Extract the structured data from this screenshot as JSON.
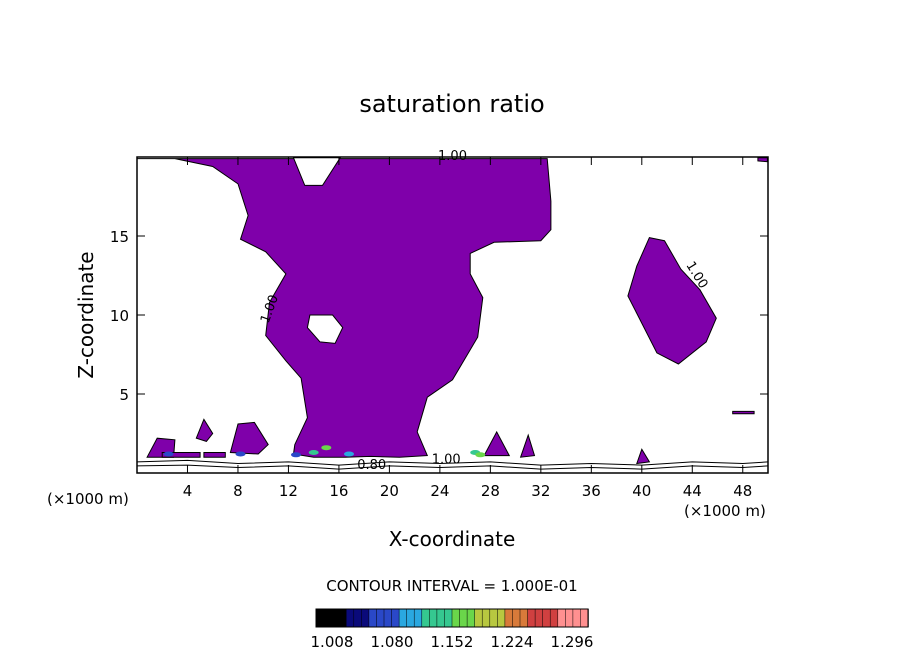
{
  "chart_data": {
    "type": "contour",
    "title": "saturation ratio",
    "xlabel": "X-coordinate",
    "ylabel": "Z-coordinate",
    "x_units_left": "(×1000 m)",
    "x_units_right": "(×1000 m)",
    "xlim": [
      0,
      50
    ],
    "ylim": [
      0,
      20
    ],
    "xticks": [
      4,
      8,
      12,
      16,
      20,
      24,
      28,
      32,
      36,
      40,
      44,
      48
    ],
    "yticks": [
      5,
      10,
      15
    ],
    "fill_threshold": 1.0,
    "fill_color": "#7f00aa",
    "contour_interval_text": "CONTOUR INTERVAL = 1.000E-01",
    "contour_labels": [
      "1.00",
      "1.00",
      "1.00",
      "0.80",
      "1.00"
    ],
    "colorbar": {
      "ticks": [
        "1.008",
        "1.080",
        "1.152",
        "1.224",
        "1.296"
      ],
      "colors": [
        "#000000",
        "#0a0a7a",
        "#2a48c8",
        "#2aa8e0",
        "#35c890",
        "#6ad64a",
        "#b8c840",
        "#d87a3a",
        "#d04040",
        "#ff9090"
      ]
    },
    "regions": [
      {
        "name": "upper-cloud",
        "points": [
          [
            0,
            19.9
          ],
          [
            3,
            19.9
          ],
          [
            6,
            19.4
          ],
          [
            8,
            18.3
          ],
          [
            8.8,
            16.3
          ],
          [
            8.2,
            14.8
          ],
          [
            10.2,
            14.0
          ],
          [
            11.8,
            12.6
          ],
          [
            10.5,
            10.8
          ],
          [
            10.2,
            8.7
          ],
          [
            11.8,
            7.1
          ],
          [
            13.0,
            6.0
          ],
          [
            13.5,
            3.5
          ],
          [
            12.5,
            1.8
          ],
          [
            12.4,
            1.2
          ],
          [
            14.0,
            1.0
          ],
          [
            16.5,
            1.0
          ],
          [
            18.5,
            1.05
          ],
          [
            20.8,
            1.0
          ],
          [
            23.0,
            1.1
          ],
          [
            22.2,
            2.6
          ],
          [
            23.0,
            4.8
          ],
          [
            25.0,
            5.9
          ],
          [
            27.0,
            8.6
          ],
          [
            27.4,
            11.1
          ],
          [
            26.4,
            12.6
          ],
          [
            26.4,
            13.9
          ],
          [
            28.3,
            14.6
          ],
          [
            32.0,
            14.7
          ],
          [
            32.8,
            15.4
          ],
          [
            32.8,
            17.2
          ],
          [
            32.5,
            19.9
          ],
          [
            0,
            19.9
          ]
        ]
      },
      {
        "name": "upper-clear-bay",
        "points": [
          [
            12.4,
            19.95
          ],
          [
            13.3,
            18.2
          ],
          [
            14.7,
            18.2
          ],
          [
            16.1,
            19.95
          ]
        ]
      },
      {
        "name": "cloud-hole",
        "points": [
          [
            13.7,
            10.0
          ],
          [
            15.5,
            10.0
          ],
          [
            16.3,
            9.2
          ],
          [
            15.7,
            8.2
          ],
          [
            14.5,
            8.3
          ],
          [
            13.5,
            9.2
          ]
        ]
      },
      {
        "name": "right-cloud",
        "points": [
          [
            40.6,
            14.9
          ],
          [
            41.8,
            14.7
          ],
          [
            43.1,
            12.9
          ],
          [
            44.6,
            11.6
          ],
          [
            45.9,
            9.8
          ],
          [
            45.1,
            8.3
          ],
          [
            42.9,
            6.9
          ],
          [
            41.2,
            7.6
          ],
          [
            39.6,
            10.1
          ],
          [
            38.9,
            11.2
          ],
          [
            39.6,
            13.1
          ]
        ]
      },
      {
        "name": "top-right-sliver",
        "points": [
          [
            49.2,
            19.95
          ],
          [
            49.95,
            19.95
          ],
          [
            49.95,
            19.7
          ],
          [
            49.2,
            19.75
          ]
        ]
      },
      {
        "name": "small-cloud-1",
        "points": [
          [
            0.8,
            1.0
          ],
          [
            1.6,
            2.2
          ],
          [
            3.0,
            2.1
          ],
          [
            2.9,
            1.0
          ]
        ]
      },
      {
        "name": "small-cloud-2",
        "points": [
          [
            4.7,
            2.2
          ],
          [
            5.3,
            3.4
          ],
          [
            6.0,
            2.5
          ],
          [
            5.5,
            2.0
          ]
        ]
      },
      {
        "name": "small-cloud-3",
        "points": [
          [
            7.4,
            1.3
          ],
          [
            8.0,
            3.1
          ],
          [
            9.3,
            3.2
          ],
          [
            10.4,
            1.8
          ],
          [
            9.6,
            1.2
          ]
        ]
      },
      {
        "name": "small-cloud-4",
        "points": [
          [
            27.5,
            1.1
          ],
          [
            28.5,
            2.6
          ],
          [
            29.5,
            1.1
          ]
        ]
      },
      {
        "name": "small-cloud-5",
        "points": [
          [
            30.4,
            1.0
          ],
          [
            31.0,
            2.4
          ],
          [
            31.5,
            1.1
          ]
        ]
      },
      {
        "name": "small-cloud-6",
        "points": [
          [
            39.6,
            0.6
          ],
          [
            40.0,
            1.5
          ],
          [
            40.6,
            0.7
          ]
        ]
      },
      {
        "name": "small-cloud-7",
        "points": [
          [
            47.2,
            3.9
          ],
          [
            48.9,
            3.9
          ],
          [
            48.9,
            3.75
          ],
          [
            47.2,
            3.75
          ]
        ]
      },
      {
        "name": "low-band-1",
        "points": [
          [
            2.0,
            1.3
          ],
          [
            5.0,
            1.3
          ],
          [
            5.0,
            1.0
          ],
          [
            2.0,
            1.0
          ]
        ]
      },
      {
        "name": "low-band-2",
        "points": [
          [
            5.3,
            1.3
          ],
          [
            7.0,
            1.3
          ],
          [
            7.0,
            1.0
          ],
          [
            5.3,
            1.0
          ]
        ]
      }
    ],
    "contour_lines": [
      {
        "level": "0.80",
        "points": [
          [
            0,
            0.7
          ],
          [
            4,
            0.8
          ],
          [
            8,
            0.6
          ],
          [
            12,
            0.7
          ],
          [
            16,
            0.5
          ],
          [
            20,
            0.7
          ],
          [
            24,
            0.6
          ],
          [
            28,
            0.7
          ],
          [
            32,
            0.5
          ],
          [
            36,
            0.6
          ],
          [
            40,
            0.5
          ],
          [
            44,
            0.7
          ],
          [
            48,
            0.6
          ],
          [
            50,
            0.7
          ]
        ]
      },
      {
        "level": "0.80",
        "points": [
          [
            0,
            0.45
          ],
          [
            4,
            0.5
          ],
          [
            8,
            0.35
          ],
          [
            12,
            0.45
          ],
          [
            16,
            0.25
          ],
          [
            20,
            0.45
          ],
          [
            24,
            0.35
          ],
          [
            28,
            0.45
          ],
          [
            32,
            0.25
          ],
          [
            36,
            0.35
          ],
          [
            40,
            0.25
          ],
          [
            44,
            0.45
          ],
          [
            48,
            0.35
          ],
          [
            50,
            0.45
          ]
        ]
      }
    ],
    "contour_label_positions": [
      {
        "text": "1.00",
        "x": 25.0,
        "y": 19.8,
        "angle": 0
      },
      {
        "text": "1.00",
        "x": 10.8,
        "y": 10.3,
        "angle": -70
      },
      {
        "text": "1.00",
        "x": 44.1,
        "y": 12.4,
        "angle": 58
      },
      {
        "text": "0.80",
        "x": 18.6,
        "y": 0.25,
        "angle": 0
      },
      {
        "text": "1.00",
        "x": 24.5,
        "y": 0.6,
        "angle": 0
      }
    ]
  }
}
